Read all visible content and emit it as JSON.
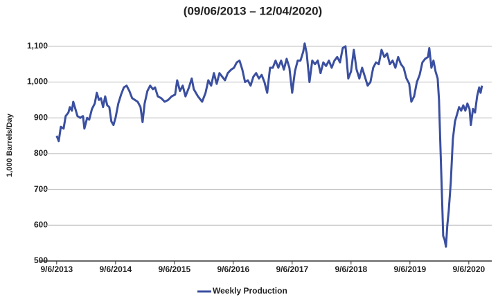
{
  "chart_data": {
    "type": "line",
    "subtitle": "(09/06/2013 – 12/04/2020)",
    "y_label": "1,000 Barrels/Day",
    "xlim": [
      2013.6,
      2021.07
    ],
    "ylim": [
      500,
      1150
    ],
    "xticks": [
      {
        "value": 2013.68,
        "label": "9/6/2013"
      },
      {
        "value": 2014.68,
        "label": "9/6/2014"
      },
      {
        "value": 2015.68,
        "label": "9/6/2015"
      },
      {
        "value": 2016.68,
        "label": "9/6/2016"
      },
      {
        "value": 2017.68,
        "label": "9/6/2017"
      },
      {
        "value": 2018.68,
        "label": "9/6/2018"
      },
      {
        "value": 2019.68,
        "label": "9/6/2019"
      },
      {
        "value": 2020.68,
        "label": "9/6/2020"
      }
    ],
    "yticks": [
      500,
      600,
      700,
      800,
      900,
      {
        "value": 1000,
        "label": "1,000"
      },
      {
        "value": 1100,
        "label": "1,100"
      }
    ],
    "grid": true,
    "legend": "bottom",
    "x": [
      2013.68,
      2013.715,
      2013.751,
      2013.798,
      2013.833,
      2013.88,
      2013.904,
      2013.939,
      2013.962,
      2013.998,
      2014.033,
      2014.08,
      2014.127,
      2014.151,
      2014.198,
      2014.233,
      2014.28,
      2014.327,
      2014.362,
      2014.398,
      2014.433,
      2014.468,
      2014.504,
      2014.539,
      2014.574,
      2014.609,
      2014.645,
      2014.68,
      2014.727,
      2014.774,
      2014.821,
      2014.868,
      2014.915,
      2014.962,
      2015.009,
      2015.056,
      2015.104,
      2015.139,
      2015.174,
      2015.221,
      2015.268,
      2015.315,
      2015.351,
      2015.398,
      2015.456,
      2015.515,
      2015.574,
      2015.633,
      2015.692,
      2015.727,
      2015.774,
      2015.821,
      2015.868,
      2015.927,
      2015.974,
      2016.009,
      2016.08,
      2016.151,
      2016.209,
      2016.256,
      2016.304,
      2016.351,
      2016.398,
      2016.445,
      2016.492,
      2016.539,
      2016.586,
      2016.645,
      2016.692,
      2016.739,
      2016.786,
      2016.833,
      2016.88,
      2016.927,
      2016.974,
      2017.021,
      2017.068,
      2017.115,
      2017.162,
      2017.209,
      2017.256,
      2017.304,
      2017.351,
      2017.398,
      2017.445,
      2017.492,
      2017.539,
      2017.586,
      2017.633,
      2017.68,
      2017.727,
      2017.774,
      2017.821,
      2017.868,
      2017.892,
      2017.927,
      2017.974,
      2018.021,
      2018.068,
      2018.115,
      2018.162,
      2018.209,
      2018.256,
      2018.304,
      2018.351,
      2018.398,
      2018.445,
      2018.492,
      2018.539,
      2018.586,
      2018.633,
      2018.68,
      2018.727,
      2018.774,
      2018.821,
      2018.868,
      2018.915,
      2018.962,
      2019.009,
      2019.056,
      2019.104,
      2019.151,
      2019.198,
      2019.245,
      2019.292,
      2019.339,
      2019.386,
      2019.433,
      2019.48,
      2019.527,
      2019.574,
      2019.621,
      2019.668,
      2019.704,
      2019.751,
      2019.798,
      2019.845,
      2019.892,
      2019.939,
      2019.986,
      2020.009,
      2020.045,
      2020.08,
      2020.115,
      2020.151,
      2020.174,
      2020.198,
      2020.221,
      2020.245,
      2020.268,
      2020.292,
      2020.315,
      2020.339,
      2020.374,
      2020.409,
      2020.445,
      2020.48,
      2020.515,
      2020.551,
      2020.586,
      2020.621,
      2020.656,
      2020.692,
      2020.715,
      2020.751,
      2020.786,
      2020.821,
      2020.856,
      2020.88,
      2020.904
    ],
    "series": [
      {
        "name": "Weekly Production",
        "color": "#3a4fa0",
        "values": [
          850,
          835,
          875,
          870,
          905,
          915,
          930,
          920,
          945,
          925,
          905,
          900,
          905,
          870,
          900,
          895,
          925,
          940,
          970,
          950,
          955,
          930,
          960,
          935,
          930,
          890,
          880,
          900,
          940,
          965,
          985,
          990,
          975,
          955,
          950,
          945,
          930,
          888,
          940,
          975,
          990,
          980,
          985,
          960,
          955,
          945,
          950,
          960,
          965,
          1005,
          975,
          990,
          960,
          985,
          1010,
          980,
          960,
          945,
          970,
          1005,
          990,
          1025,
          995,
          1025,
          1015,
          1005,
          1025,
          1035,
          1040,
          1055,
          1060,
          1035,
          1000,
          1005,
          990,
          1015,
          1025,
          1010,
          1020,
          1000,
          970,
          1040,
          1040,
          1060,
          1040,
          1060,
          1035,
          1065,
          1040,
          970,
          1030,
          1060,
          1060,
          1085,
          1108,
          1080,
          1000,
          1060,
          1050,
          1060,
          1025,
          1055,
          1045,
          1060,
          1040,
          1060,
          1070,
          1055,
          1095,
          1100,
          1010,
          1030,
          1090,
          1035,
          1010,
          1040,
          1015,
          990,
          1000,
          1040,
          1055,
          1050,
          1090,
          1070,
          1080,
          1050,
          1060,
          1040,
          1070,
          1050,
          1040,
          1010,
          995,
          945,
          960,
          1000,
          1020,
          1055,
          1065,
          1070,
          1095,
          1040,
          1060,
          1030,
          1010,
          950,
          820,
          700,
          570,
          560,
          540,
          600,
          640,
          720,
          840,
          890,
          910,
          930,
          920,
          935,
          920,
          940,
          925,
          880,
          925,
          915,
          960,
          985,
          970,
          990
        ]
      }
    ]
  }
}
